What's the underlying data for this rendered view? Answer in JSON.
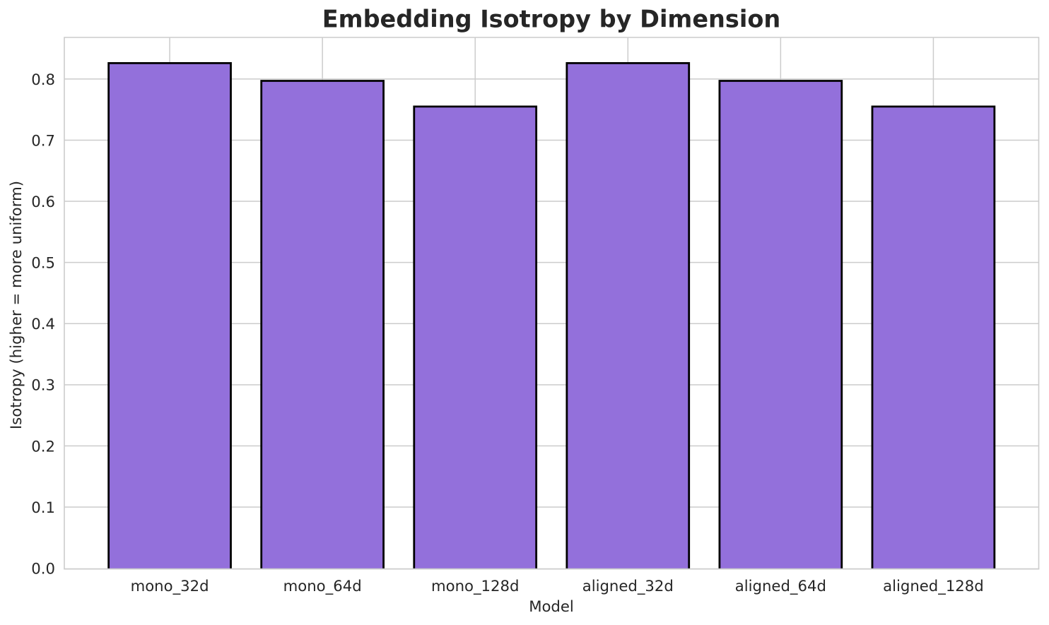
{
  "chart_data": {
    "type": "bar",
    "title": "Embedding Isotropy by Dimension",
    "xlabel": "Model",
    "ylabel": "Isotropy (higher = more uniform)",
    "categories": [
      "mono_32d",
      "mono_64d",
      "mono_128d",
      "aligned_32d",
      "aligned_64d",
      "aligned_128d"
    ],
    "values": [
      0.826,
      0.797,
      0.755,
      0.826,
      0.797,
      0.755
    ],
    "ylim": [
      0.0,
      0.868
    ],
    "yticks": [
      0.0,
      0.1,
      0.2,
      0.3,
      0.4,
      0.5,
      0.6,
      0.7,
      0.8
    ],
    "ytick_labels": [
      "0.0",
      "0.1",
      "0.2",
      "0.3",
      "0.4",
      "0.5",
      "0.6",
      "0.7",
      "0.8"
    ],
    "grid": true,
    "legend": "none",
    "colors": {
      "bar_fill": "#9370DB",
      "bar_edge": "#000000",
      "grid": "#cccccc",
      "spine": "#cccccc",
      "text": "#262626",
      "background": "#ffffff"
    }
  }
}
